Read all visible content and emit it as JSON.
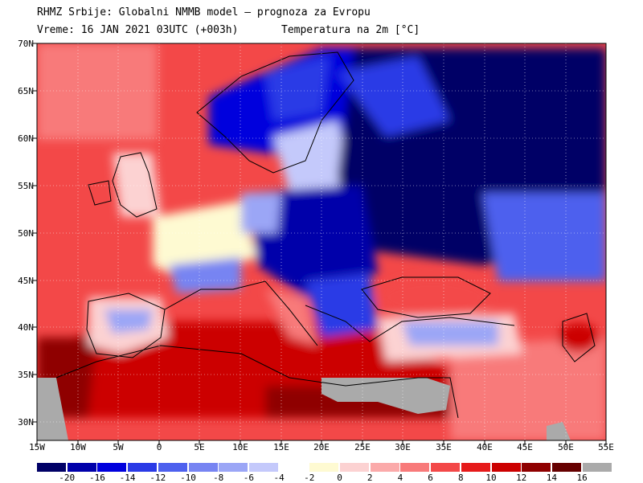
{
  "header": {
    "line1": "RHMZ Srbije: Globalni NMMB model — prognoza za Evropu",
    "line2": "Vreme: 16 JAN 2021 03UTC (+003h)",
    "line3": "Temperatura na 2m [°C]"
  },
  "axes": {
    "lat_labels": [
      "70N",
      "65N",
      "60N",
      "55N",
      "50N",
      "45N",
      "40N",
      "35N",
      "30N"
    ],
    "lon_labels": [
      "15W",
      "10W",
      "5W",
      "0",
      "5E",
      "10E",
      "15E",
      "20E",
      "25E",
      "30E",
      "35E",
      "40E",
      "45E",
      "50E",
      "55E"
    ]
  },
  "colorbar": {
    "labels": [
      "-20",
      "-16",
      "-14",
      "-12",
      "-10",
      "-8",
      "-6",
      "-4",
      "-2",
      "0",
      "2",
      "4",
      "6",
      "8",
      "10",
      "12",
      "14",
      "16"
    ],
    "colors": [
      "#000066",
      "#0000aa",
      "#0000dd",
      "#2a3ae6",
      "#4d60ee",
      "#7784f2",
      "#9ba6f6",
      "#c4c9fb",
      "#ffffff",
      "#fefad2",
      "#fcd2d2",
      "#fbaaaa",
      "#f87a7a",
      "#f34848",
      "#e61a1a",
      "#cc0000",
      "#8f0000",
      "#660000",
      "#aaaaaa"
    ]
  }
}
